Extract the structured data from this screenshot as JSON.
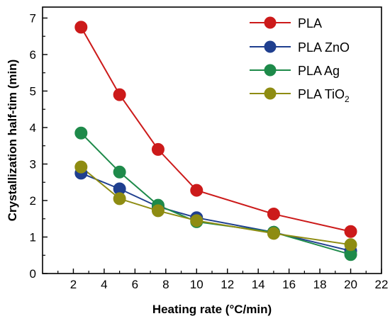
{
  "chart_data": {
    "type": "line",
    "xlabel": "Heating rate (°C/min)",
    "ylabel": "Crystallization half-tim (min)",
    "xlim": [
      0,
      22
    ],
    "ylim": [
      0,
      7.3
    ],
    "x_ticks": [
      "2",
      "4",
      "6",
      "8",
      "10",
      "12",
      "14",
      "16",
      "18",
      "20",
      "22"
    ],
    "y_ticks": [
      "0",
      "1",
      "2",
      "3",
      "4",
      "5",
      "6",
      "7"
    ],
    "grid": false,
    "legend_position": "top-right",
    "x": [
      2.5,
      5,
      7.5,
      10,
      15,
      20
    ],
    "series": [
      {
        "name": "PLA",
        "name_main": "PLA",
        "name_sub": "",
        "color": "#cc1a1a",
        "values": [
          6.75,
          4.9,
          3.4,
          2.28,
          1.63,
          1.15
        ]
      },
      {
        "name": "PLA ZnO",
        "name_main": "PLA ZnO",
        "name_sub": "",
        "color": "#1f3f8f",
        "values": [
          2.75,
          2.32,
          1.83,
          1.53,
          1.13,
          0.62
        ]
      },
      {
        "name": "PLA Ag",
        "name_main": "PLA Ag",
        "name_sub": "",
        "color": "#1e8a4a",
        "values": [
          3.85,
          2.78,
          1.87,
          1.42,
          1.13,
          0.52
        ]
      },
      {
        "name": "PLA TiO2",
        "name_main": "PLA TiO",
        "name_sub": "2",
        "color": "#8e8c12",
        "values": [
          2.92,
          2.05,
          1.72,
          1.45,
          1.1,
          0.79
        ]
      }
    ]
  }
}
